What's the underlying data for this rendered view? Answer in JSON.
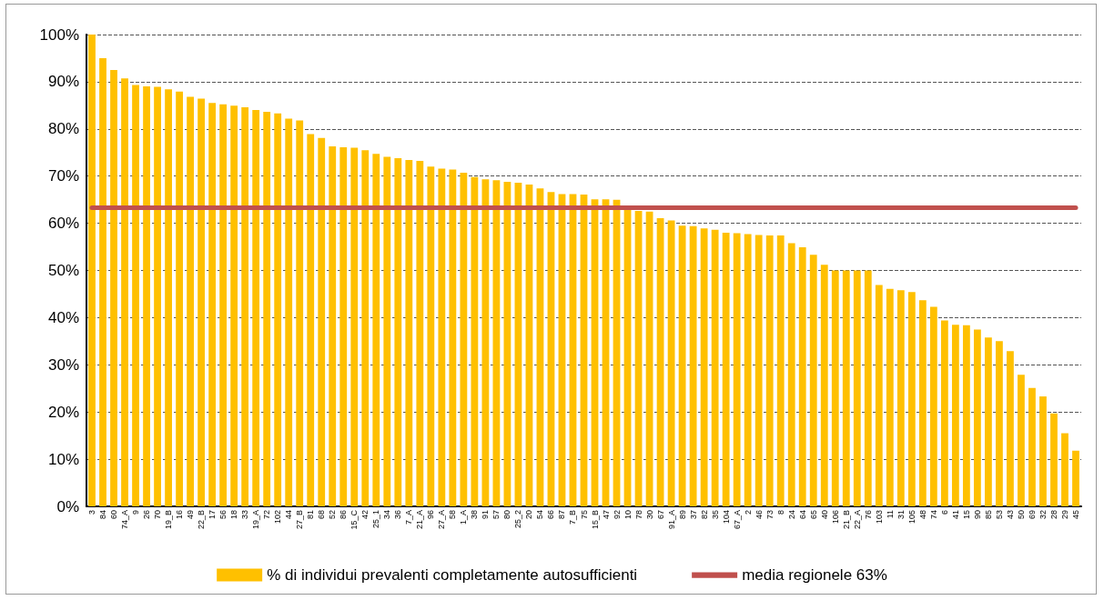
{
  "chart_data": {
    "type": "bar",
    "categories": [
      "3",
      "84",
      "60",
      "74_A",
      "9",
      "26",
      "70",
      "19_B",
      "16",
      "49",
      "22_B",
      "17",
      "56",
      "18",
      "33",
      "19_A",
      "72",
      "102",
      "44",
      "27_B",
      "81",
      "68",
      "52",
      "86",
      "15_C",
      "42",
      "25_1",
      "34",
      "36",
      "7_A",
      "21_A",
      "96",
      "27_A",
      "58",
      "1_A",
      "38",
      "91",
      "57",
      "80",
      "25_2",
      "20",
      "54",
      "66",
      "87",
      "7_B",
      "75",
      "15_B",
      "47",
      "92",
      "10",
      "78",
      "30",
      "67",
      "91_A",
      "89",
      "37",
      "82",
      "35",
      "104",
      "67_A",
      "2",
      "46",
      "73",
      "8",
      "24",
      "64",
      "65",
      "40",
      "106",
      "21_B",
      "22_A",
      "76",
      "103",
      "11",
      "31",
      "105",
      "48",
      "74",
      "6",
      "41",
      "15",
      "90",
      "85",
      "53",
      "43",
      "50",
      "69",
      "32",
      "28",
      "29",
      "45"
    ],
    "series": [
      {
        "name": "% di individui prevalenti completamente autosufficienti",
        "color": "#ffc000",
        "values": [
          100,
          95.0,
          92.5,
          90.7,
          89.3,
          89.0,
          88.9,
          88.4,
          87.9,
          86.8,
          86.4,
          85.5,
          85.2,
          84.9,
          84.6,
          84.0,
          83.6,
          83.3,
          82.2,
          81.8,
          78.9,
          78.1,
          76.3,
          76.1,
          76.0,
          75.5,
          74.7,
          74.1,
          73.8,
          73.4,
          73.2,
          72.0,
          71.6,
          71.4,
          70.7,
          69.8,
          69.3,
          69.1,
          68.8,
          68.6,
          68.2,
          67.4,
          66.6,
          66.2,
          66.2,
          66.1,
          65.1,
          65.1,
          65.0,
          62.8,
          62.6,
          62.5,
          61.1,
          60.6,
          59.5,
          59.4,
          58.9,
          58.6,
          58.0,
          57.9,
          57.7,
          57.5,
          57.4,
          57.4,
          55.8,
          54.9,
          53.3,
          51.2,
          50.0,
          50.0,
          50.0,
          50.0,
          46.9,
          46.1,
          45.8,
          45.4,
          43.7,
          42.3,
          39.4,
          38.5,
          38.4,
          37.5,
          35.8,
          35.0,
          32.9,
          27.9,
          25.1,
          23.3,
          19.7,
          15.5,
          11.8
        ]
      },
      {
        "name": "media regionele 63%",
        "type": "line",
        "color": "#c0504d",
        "values": [
          63.3,
          63.3,
          63.3,
          63.3,
          63.3,
          63.3,
          63.3,
          63.3,
          63.3,
          63.3,
          63.3,
          63.3,
          63.3,
          63.3,
          63.3,
          63.3,
          63.3,
          63.3,
          63.3,
          63.3,
          63.3,
          63.3,
          63.3,
          63.3,
          63.3,
          63.3,
          63.3,
          63.3,
          63.3,
          63.3,
          63.3,
          63.3,
          63.3,
          63.3,
          63.3,
          63.3,
          63.3,
          63.3,
          63.3,
          63.3,
          63.3,
          63.3,
          63.3,
          63.3,
          63.3,
          63.3,
          63.3,
          63.3,
          63.3,
          63.3,
          63.3,
          63.3,
          63.3,
          63.3,
          63.3,
          63.3,
          63.3,
          63.3,
          63.3,
          63.3,
          63.3,
          63.3,
          63.3,
          63.3,
          63.3,
          63.3,
          63.3,
          63.3,
          63.3,
          63.3,
          63.3,
          63.3,
          63.3,
          63.3,
          63.3,
          63.3,
          63.3,
          63.3,
          63.3,
          63.3,
          63.3,
          63.3,
          63.3,
          63.3,
          63.3,
          63.3,
          63.3,
          63.3,
          63.3,
          63.3,
          63.3
        ]
      }
    ],
    "ylim": [
      0,
      100
    ],
    "yticks": [
      {
        "value": 0,
        "label": "0%"
      },
      {
        "value": 10,
        "label": "10%"
      },
      {
        "value": 20,
        "label": "20%"
      },
      {
        "value": 30,
        "label": "30%"
      },
      {
        "value": 40,
        "label": "40%"
      },
      {
        "value": 50,
        "label": "50%"
      },
      {
        "value": 60,
        "label": "60%"
      },
      {
        "value": 70,
        "label": "70%"
      },
      {
        "value": 80,
        "label": "80%"
      },
      {
        "value": 90,
        "label": "90%"
      },
      {
        "value": 100,
        "label": "100%"
      }
    ],
    "grid": "y",
    "legend": "bottom",
    "marker": "none",
    "line_style": "solid"
  }
}
